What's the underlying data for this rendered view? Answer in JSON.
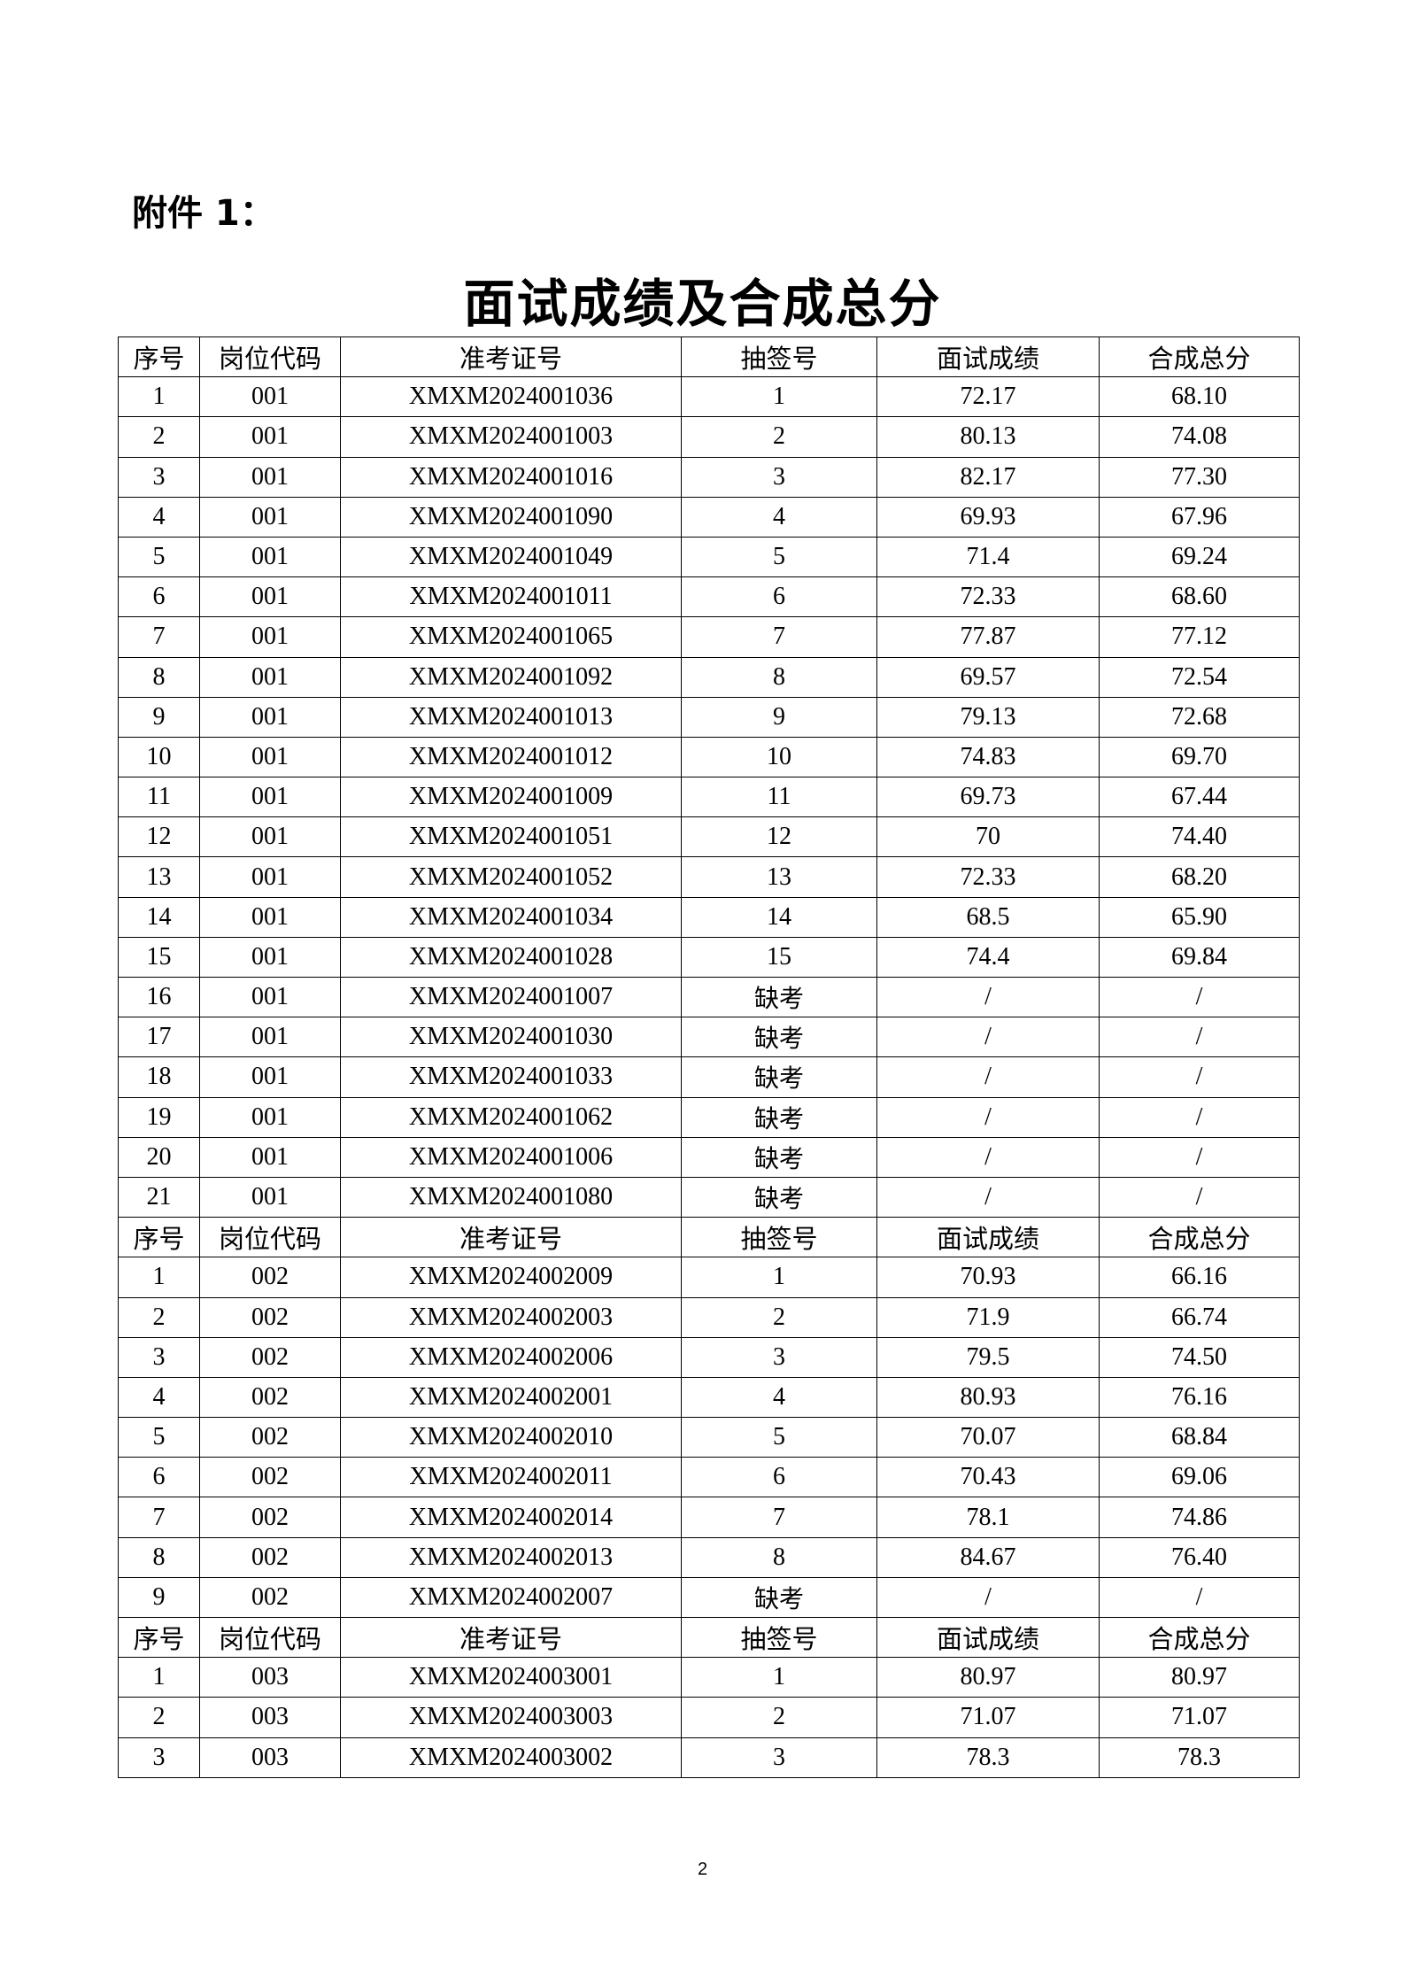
{
  "attachment_label": "附件 1：",
  "title": "面试成绩及合成总分",
  "columns": [
    "序号",
    "岗位代码",
    "准考证号",
    "抽签号",
    "面试成绩",
    "合成总分"
  ],
  "sections": [
    {
      "rows": [
        [
          "1",
          "001",
          "XMXM2024001036",
          "1",
          "72.17",
          "68.10"
        ],
        [
          "2",
          "001",
          "XMXM2024001003",
          "2",
          "80.13",
          "74.08"
        ],
        [
          "3",
          "001",
          "XMXM2024001016",
          "3",
          "82.17",
          "77.30"
        ],
        [
          "4",
          "001",
          "XMXM2024001090",
          "4",
          "69.93",
          "67.96"
        ],
        [
          "5",
          "001",
          "XMXM2024001049",
          "5",
          "71.4",
          "69.24"
        ],
        [
          "6",
          "001",
          "XMXM2024001011",
          "6",
          "72.33",
          "68.60"
        ],
        [
          "7",
          "001",
          "XMXM2024001065",
          "7",
          "77.87",
          "77.12"
        ],
        [
          "8",
          "001",
          "XMXM2024001092",
          "8",
          "69.57",
          "72.54"
        ],
        [
          "9",
          "001",
          "XMXM2024001013",
          "9",
          "79.13",
          "72.68"
        ],
        [
          "10",
          "001",
          "XMXM2024001012",
          "10",
          "74.83",
          "69.70"
        ],
        [
          "11",
          "001",
          "XMXM2024001009",
          "11",
          "69.73",
          "67.44"
        ],
        [
          "12",
          "001",
          "XMXM2024001051",
          "12",
          "70",
          "74.40"
        ],
        [
          "13",
          "001",
          "XMXM2024001052",
          "13",
          "72.33",
          "68.20"
        ],
        [
          "14",
          "001",
          "XMXM2024001034",
          "14",
          "68.5",
          "65.90"
        ],
        [
          "15",
          "001",
          "XMXM2024001028",
          "15",
          "74.4",
          "69.84"
        ],
        [
          "16",
          "001",
          "XMXM2024001007",
          "缺考",
          "/",
          "/"
        ],
        [
          "17",
          "001",
          "XMXM2024001030",
          "缺考",
          "/",
          "/"
        ],
        [
          "18",
          "001",
          "XMXM2024001033",
          "缺考",
          "/",
          "/"
        ],
        [
          "19",
          "001",
          "XMXM2024001062",
          "缺考",
          "/",
          "/"
        ],
        [
          "20",
          "001",
          "XMXM2024001006",
          "缺考",
          "/",
          "/"
        ],
        [
          "21",
          "001",
          "XMXM2024001080",
          "缺考",
          "/",
          "/"
        ]
      ]
    },
    {
      "rows": [
        [
          "1",
          "002",
          "XMXM2024002009",
          "1",
          "70.93",
          "66.16"
        ],
        [
          "2",
          "002",
          "XMXM2024002003",
          "2",
          "71.9",
          "66.74"
        ],
        [
          "3",
          "002",
          "XMXM2024002006",
          "3",
          "79.5",
          "74.50"
        ],
        [
          "4",
          "002",
          "XMXM2024002001",
          "4",
          "80.93",
          "76.16"
        ],
        [
          "5",
          "002",
          "XMXM2024002010",
          "5",
          "70.07",
          "68.84"
        ],
        [
          "6",
          "002",
          "XMXM2024002011",
          "6",
          "70.43",
          "69.06"
        ],
        [
          "7",
          "002",
          "XMXM2024002014",
          "7",
          "78.1",
          "74.86"
        ],
        [
          "8",
          "002",
          "XMXM2024002013",
          "8",
          "84.67",
          "76.40"
        ],
        [
          "9",
          "002",
          "XMXM2024002007",
          "缺考",
          "/",
          "/"
        ]
      ]
    },
    {
      "rows": [
        [
          "1",
          "003",
          "XMXM2024003001",
          "1",
          "80.97",
          "80.97"
        ],
        [
          "2",
          "003",
          "XMXM2024003003",
          "2",
          "71.07",
          "71.07"
        ],
        [
          "3",
          "003",
          "XMXM2024003002",
          "3",
          "78.3",
          "78.3"
        ]
      ]
    }
  ],
  "page_number": "2"
}
